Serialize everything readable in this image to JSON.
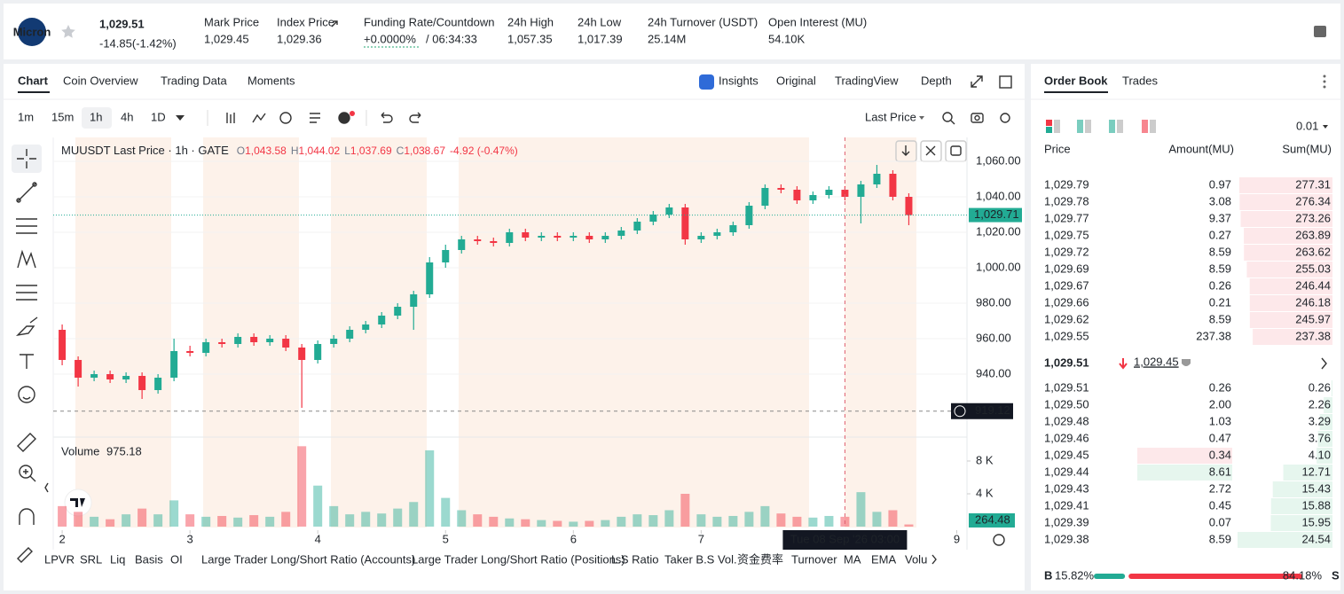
{
  "header": {
    "logo": "Micron",
    "last_price": "1,029.51",
    "change": "-14.85(-1.42%)",
    "stats": [
      {
        "label": "Mark Price",
        "value": "1,029.45"
      },
      {
        "label": "Index Price",
        "value": "1,029.36"
      },
      {
        "label": "Funding Rate/Countdown",
        "rate": "+0.0000%",
        "countdown": "/ 06:34:33"
      },
      {
        "label": "24h High",
        "value": "1,057.35"
      },
      {
        "label": "24h Low",
        "value": "1,017.39"
      },
      {
        "label": "24h Turnover (USDT)",
        "value": "25.14M"
      },
      {
        "label": "Open Interest (MU)",
        "value": "54.10K"
      }
    ]
  },
  "chart_tabs": [
    "Chart",
    "Coin Overview",
    "Trading Data",
    "Moments"
  ],
  "view_tabs": [
    "Insights",
    "Original",
    "TradingView",
    "Depth"
  ],
  "intervals": [
    "1m",
    "15m",
    "1h",
    "4h",
    "1D"
  ],
  "price_type": "Last Price",
  "chart_data": {
    "type": "candlestick",
    "legend": {
      "symbol": "MUUSDT Last Price · 1h · GATE",
      "ohlc": [
        {
          "key": "O",
          "value": "1,043.58"
        },
        {
          "key": "H",
          "value": "1,044.02"
        },
        {
          "key": "L",
          "value": "1,037.69"
        },
        {
          "key": "C",
          "value": "1,038.67"
        }
      ],
      "change": "-4.92 (-0.47%)"
    },
    "x": [
      2,
      2.125,
      2.25,
      2.375,
      2.5,
      2.625,
      2.75,
      2.875,
      3,
      3.125,
      3.25,
      3.375,
      3.5,
      3.625,
      3.75,
      3.875,
      4,
      4.125,
      4.25,
      4.375,
      4.5,
      4.625,
      4.75,
      4.875,
      5,
      5.125,
      5.25,
      5.375,
      5.5,
      5.625,
      5.75,
      5.875,
      6,
      6.125,
      6.25,
      6.375,
      6.5,
      6.625,
      6.75,
      6.875,
      7,
      7.125,
      7.25,
      7.375,
      7.5,
      7.625,
      7.75,
      7.875,
      8,
      8.125,
      8.25,
      8.375,
      8.5,
      8.625
    ],
    "open": [
      965,
      948,
      938,
      940,
      937,
      939,
      931,
      938,
      953,
      952,
      958,
      957,
      961,
      958,
      960,
      955,
      948,
      957,
      960,
      965,
      968,
      973,
      978,
      985,
      1003,
      1010,
      1016,
      1015,
      1014,
      1020,
      1017,
      1018,
      1017,
      1018,
      1016,
      1018,
      1021,
      1026,
      1030,
      1034,
      1016,
      1018,
      1020,
      1024,
      1035,
      1045,
      1044,
      1038,
      1041,
      1044,
      1040,
      1047,
      1053,
      1040
    ],
    "high": [
      968,
      950,
      942,
      942,
      941,
      941,
      940,
      960,
      956,
      960,
      960,
      963,
      963,
      962,
      962,
      957,
      959,
      962,
      967,
      970,
      975,
      980,
      987,
      1006,
      1013,
      1018,
      1018,
      1017,
      1022,
      1022,
      1020,
      1020,
      1020,
      1020,
      1020,
      1023,
      1028,
      1032,
      1036,
      1036,
      1020,
      1022,
      1026,
      1037,
      1047,
      1047,
      1046,
      1043,
      1046,
      1046,
      1049,
      1058,
      1055,
      1042
    ],
    "low": [
      945,
      933,
      936,
      935,
      935,
      926,
      929,
      936,
      950,
      950,
      955,
      955,
      956,
      956,
      953,
      921,
      946,
      955,
      958,
      963,
      966,
      971,
      965,
      983,
      1000,
      1008,
      1013,
      1012,
      1012,
      1015,
      1015,
      1015,
      1015,
      1014,
      1014,
      1016,
      1019,
      1024,
      1028,
      1013,
      1014,
      1016,
      1018,
      1022,
      1033,
      1042,
      1036,
      1036,
      1039,
      1038,
      1025,
      1045,
      1038,
      1024
    ],
    "close": [
      948,
      938,
      940,
      937,
      939,
      931,
      938,
      953,
      952,
      958,
      957,
      961,
      958,
      960,
      955,
      948,
      957,
      960,
      965,
      968,
      973,
      978,
      985,
      1003,
      1010,
      1016,
      1015,
      1014,
      1020,
      1017,
      1018,
      1017,
      1018,
      1016,
      1018,
      1021,
      1026,
      1030,
      1034,
      1016,
      1018,
      1020,
      1024,
      1035,
      1045,
      1044,
      1038,
      1041,
      1044,
      1040,
      1047,
      1053,
      1040,
      1029.71
    ],
    "volume": [
      2500,
      1800,
      1200,
      900,
      1500,
      2200,
      1500,
      3200,
      1500,
      1200,
      1300,
      1100,
      1400,
      1200,
      1800,
      9800,
      5000,
      2500,
      1500,
      1800,
      1600,
      2200,
      3000,
      9300,
      3500,
      2000,
      1500,
      1200,
      1000,
      900,
      800,
      700,
      600,
      700,
      800,
      1200,
      1500,
      1400,
      2000,
      4000,
      1500,
      1200,
      1300,
      1800,
      2500,
      1600,
      1200,
      1100,
      1300,
      1200,
      4200,
      1800,
      2000,
      264.48
    ],
    "up_color": "#22ab94",
    "down_color": "#f23645",
    "xlim": [
      1.93,
      9.08
    ],
    "xticks": [
      2,
      3,
      4,
      5,
      6,
      7,
      9
    ],
    "ylim": [
      905,
      1073.5
    ],
    "yticks": [
      {
        "value": 940,
        "label": "940.00"
      },
      {
        "value": 960,
        "label": "960.00"
      },
      {
        "value": 980,
        "label": "980.00"
      },
      {
        "value": 1000,
        "label": "1,000.00"
      },
      {
        "value": 1020,
        "label": "1,020.00"
      },
      {
        "value": 1040,
        "label": "1,040.00"
      },
      {
        "value": 1060,
        "label": "1,060.00"
      }
    ],
    "last_price": {
      "value": 1029.71,
      "label": "1,029.71"
    },
    "crosshair": {
      "x": {
        "value": 8.125,
        "label": "Tue 08 Sep '26   03:00"
      },
      "y": 919.12
    },
    "volume_title": "Volume",
    "volume_value": "975.18",
    "volume_ylim": [
      0,
      10700
    ],
    "volume_yticks": [
      {
        "value": 4000,
        "label": "4 K"
      },
      {
        "value": 8000,
        "label": "8 K"
      }
    ],
    "last_volume": 264.48
  },
  "indicators": [
    "LPVR",
    "SRL",
    "Liq",
    "Basis",
    "OI",
    "Large Trader Long/Short Ratio (Accounts)",
    "Large Trader Long/Short Ratio (Positions)",
    "L.S Ratio",
    "Taker B.S Vol.",
    "资金费率",
    "Turnover",
    "MA",
    "EMA",
    "Volu"
  ],
  "order_book": {
    "tabs": [
      "Order Book",
      "Trades"
    ],
    "precision": "0.01",
    "columns": [
      "Price",
      "Amount(MU)",
      "Sum(MU)"
    ],
    "asks": [
      {
        "price": "1,029.79",
        "amount": "0.97",
        "sum": 277.31
      },
      {
        "price": "1,029.78",
        "amount": "3.08",
        "sum": 276.34
      },
      {
        "price": "1,029.77",
        "amount": "9.37",
        "sum": 273.26
      },
      {
        "price": "1,029.75",
        "amount": "0.27",
        "sum": 263.89
      },
      {
        "price": "1,029.72",
        "amount": "8.59",
        "sum": 263.62
      },
      {
        "price": "1,029.69",
        "amount": "8.59",
        "sum": 255.03
      },
      {
        "price": "1,029.67",
        "amount": "0.26",
        "sum": 246.44
      },
      {
        "price": "1,029.66",
        "amount": "0.21",
        "sum": 246.18
      },
      {
        "price": "1,029.62",
        "amount": "8.59",
        "sum": 245.97
      },
      {
        "price": "1,029.55",
        "amount": "237.38",
        "sum": 237.38
      }
    ],
    "mid_price": "1,029.51",
    "mark_price": "1,029.45",
    "bids": [
      {
        "price": "1,029.51",
        "amount": "0.26",
        "sum": 0.26
      },
      {
        "price": "1,029.50",
        "amount": "2.00",
        "sum": 2.26
      },
      {
        "price": "1,029.48",
        "amount": "1.03",
        "sum": 3.29
      },
      {
        "price": "1,029.46",
        "amount": "0.47",
        "sum": 3.76
      },
      {
        "price": "1,029.45",
        "amount": "0.34",
        "sum": {
          "value": 4.1,
          "label": "4.10"
        }
      },
      {
        "price": "1,029.44",
        "amount": "8.61",
        "sum": 12.71
      },
      {
        "price": "1,029.43",
        "amount": "2.72",
        "sum": 15.43
      },
      {
        "price": "1,029.41",
        "amount": "0.45",
        "sum": 15.88
      },
      {
        "price": "1,029.39",
        "amount": "0.07",
        "sum": 15.95
      },
      {
        "price": "1,029.38",
        "amount": "8.59",
        "sum": 24.54
      }
    ],
    "ratio": {
      "buy_key": "B",
      "buy": {
        "value": 15.82,
        "label": "15.82%"
      },
      "sell": {
        "value": 84.18,
        "label": "84.18%"
      },
      "sell_key": "S"
    }
  }
}
